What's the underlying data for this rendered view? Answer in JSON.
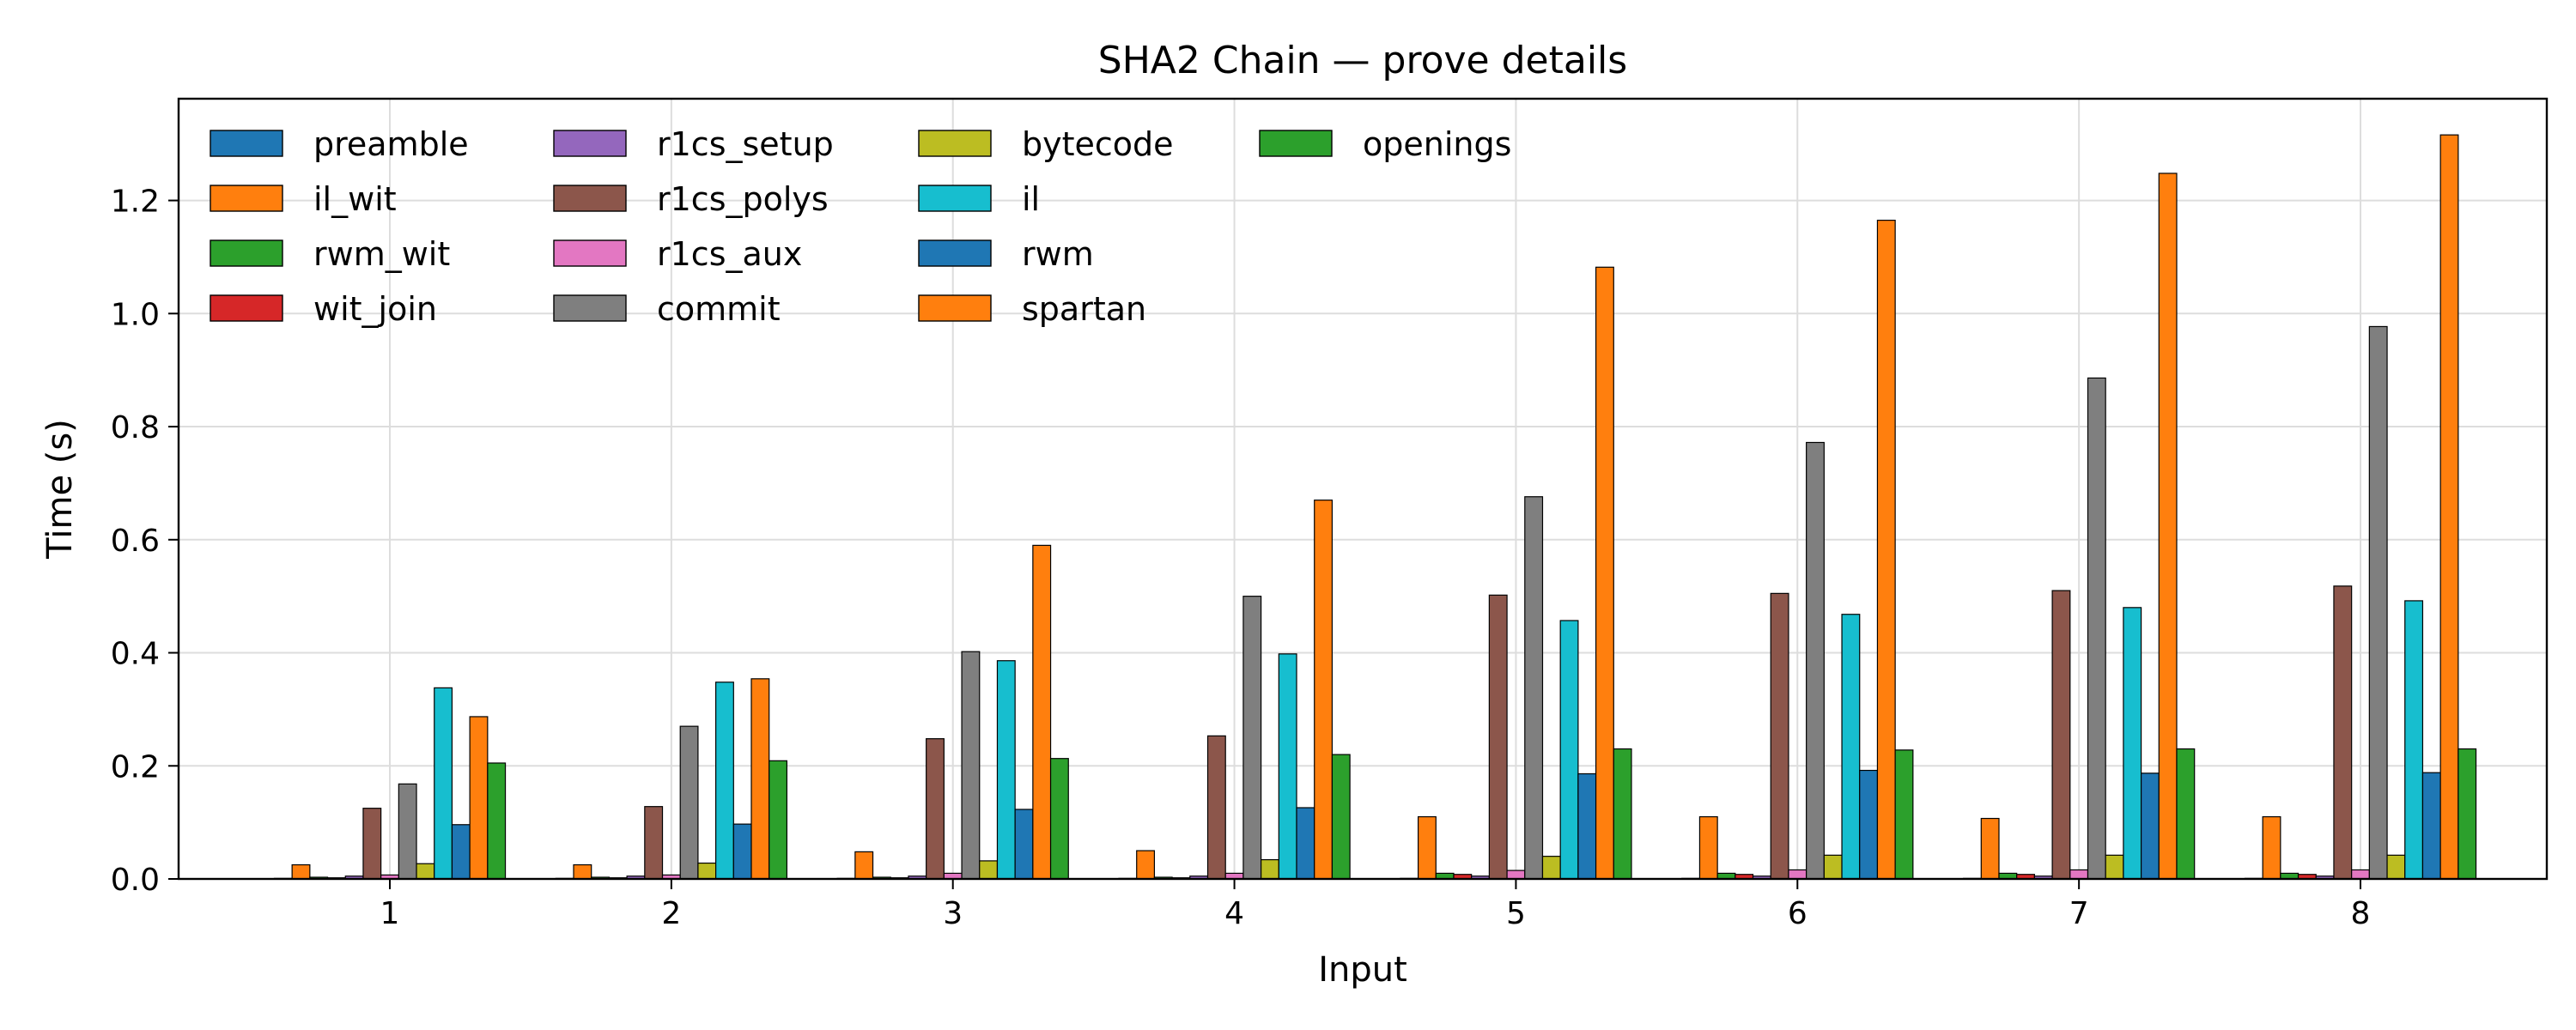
{
  "chart_data": {
    "type": "bar",
    "title": "SHA2 Chain — prove details",
    "xlabel": "Input",
    "ylabel": "Time (s)",
    "categories": [
      "1",
      "2",
      "3",
      "4",
      "5",
      "6",
      "7",
      "8"
    ],
    "ylim": [
      0,
      1.38
    ],
    "yticks": [
      "0.0",
      "0.2",
      "0.4",
      "0.6",
      "0.8",
      "1.0",
      "1.2"
    ],
    "grid": true,
    "legend_position": "top-left",
    "legend_columns": 4,
    "series": [
      {
        "name": "preamble",
        "color": "#1f77b4",
        "values": [
          0.001,
          0.001,
          0.001,
          0.001,
          0.001,
          0.001,
          0.001,
          0.001
        ]
      },
      {
        "name": "il_wit",
        "color": "#ff7f0e",
        "values": [
          0.025,
          0.025,
          0.048,
          0.05,
          0.11,
          0.11,
          0.107,
          0.11
        ]
      },
      {
        "name": "rwm_wit",
        "color": "#2ca02c",
        "values": [
          0.003,
          0.003,
          0.003,
          0.003,
          0.01,
          0.01,
          0.01,
          0.01
        ]
      },
      {
        "name": "wit_join",
        "color": "#d62728",
        "values": [
          0.002,
          0.002,
          0.002,
          0.002,
          0.008,
          0.008,
          0.008,
          0.008
        ]
      },
      {
        "name": "r1cs_setup",
        "color": "#9467bd",
        "values": [
          0.005,
          0.005,
          0.005,
          0.005,
          0.005,
          0.005,
          0.005,
          0.005
        ]
      },
      {
        "name": "r1cs_polys",
        "color": "#8c564b",
        "values": [
          0.125,
          0.128,
          0.248,
          0.253,
          0.502,
          0.505,
          0.51,
          0.518
        ]
      },
      {
        "name": "r1cs_aux",
        "color": "#e377c2",
        "values": [
          0.007,
          0.007,
          0.01,
          0.01,
          0.015,
          0.016,
          0.016,
          0.016
        ]
      },
      {
        "name": "commit",
        "color": "#7f7f7f",
        "values": [
          0.168,
          0.27,
          0.402,
          0.5,
          0.676,
          0.772,
          0.886,
          0.977
        ]
      },
      {
        "name": "bytecode",
        "color": "#bcbd22",
        "values": [
          0.027,
          0.028,
          0.032,
          0.034,
          0.04,
          0.042,
          0.042,
          0.042
        ]
      },
      {
        "name": "il",
        "color": "#17becf",
        "values": [
          0.338,
          0.348,
          0.386,
          0.398,
          0.457,
          0.468,
          0.48,
          0.492
        ]
      },
      {
        "name": "rwm",
        "color": "#1f77b4",
        "values": [
          0.096,
          0.097,
          0.123,
          0.126,
          0.186,
          0.192,
          0.187,
          0.188
        ]
      },
      {
        "name": "spartan",
        "color": "#ff7f0e",
        "values": [
          0.287,
          0.354,
          0.59,
          0.67,
          1.082,
          1.165,
          1.248,
          1.316
        ]
      },
      {
        "name": "openings",
        "color": "#2ca02c",
        "values": [
          0.205,
          0.209,
          0.213,
          0.22,
          0.23,
          0.228,
          0.23,
          0.23
        ]
      }
    ]
  }
}
